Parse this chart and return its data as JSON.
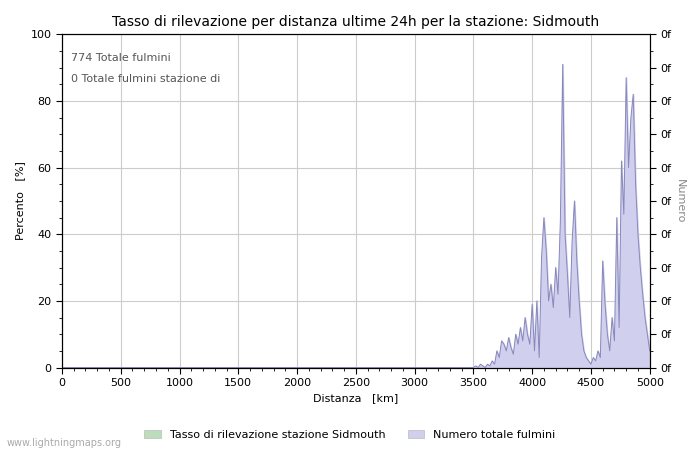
{
  "title": "Tasso di rilevazione per distanza ultime 24h per la stazione: Sidmouth",
  "xlabel": "Distanza   [km]",
  "ylabel_left": "Percento   [%]",
  "ylabel_right": "Numero",
  "annotation_line1": "774 Totale fulmini",
  "annotation_line2": "0 Totale fulmini stazione di",
  "xlim": [
    0,
    5000
  ],
  "ylim_left": [
    0,
    100
  ],
  "xticks": [
    0,
    500,
    1000,
    1500,
    2000,
    2500,
    3000,
    3500,
    4000,
    4500,
    5000
  ],
  "yticks_left": [
    0,
    20,
    40,
    60,
    80,
    100
  ],
  "line_color": "#8888bb",
  "fill_color": "#d0d0ee",
  "legend_label_green": "Tasso di rilevazione stazione Sidmouth",
  "legend_label_blue": "Numero totale fulmini",
  "legend_green": "#bbddbb",
  "legend_blue": "#d0d0ee",
  "watermark": "www.lightningmaps.org",
  "background_color": "#ffffff",
  "grid_color": "#cccccc",
  "title_fontsize": 10,
  "label_fontsize": 8,
  "tick_fontsize": 8,
  "data_x": [
    0,
    50,
    100,
    150,
    200,
    250,
    300,
    350,
    400,
    450,
    500,
    550,
    600,
    650,
    700,
    750,
    800,
    850,
    900,
    950,
    1000,
    1050,
    1100,
    1150,
    1200,
    1250,
    1300,
    1350,
    1400,
    1450,
    1500,
    1550,
    1600,
    1650,
    1700,
    1750,
    1800,
    1850,
    1900,
    1950,
    2000,
    2050,
    2100,
    2150,
    2200,
    2250,
    2300,
    2350,
    2400,
    2450,
    2500,
    2550,
    2600,
    2650,
    2700,
    2750,
    2800,
    2850,
    2900,
    2950,
    3000,
    3050,
    3100,
    3150,
    3200,
    3250,
    3300,
    3350,
    3400,
    3450,
    3500,
    3520,
    3540,
    3560,
    3580,
    3600,
    3620,
    3640,
    3660,
    3680,
    3700,
    3720,
    3740,
    3760,
    3780,
    3800,
    3820,
    3840,
    3860,
    3880,
    3900,
    3920,
    3940,
    3960,
    3980,
    4000,
    4020,
    4040,
    4060,
    4080,
    4100,
    4120,
    4140,
    4160,
    4180,
    4200,
    4220,
    4240,
    4260,
    4280,
    4300,
    4320,
    4340,
    4360,
    4380,
    4400,
    4420,
    4440,
    4460,
    4480,
    4500,
    4520,
    4540,
    4560,
    4580,
    4600,
    4620,
    4640,
    4660,
    4680,
    4700,
    4720,
    4740,
    4760,
    4780,
    4800,
    4820,
    4840,
    4860,
    4880,
    4900,
    4920,
    4940,
    4960,
    4980,
    5000
  ],
  "data_y": [
    0,
    0,
    0,
    0,
    0,
    0,
    0,
    0,
    0,
    0,
    0,
    0,
    0,
    0,
    0,
    0,
    0,
    0,
    0,
    0,
    0,
    0,
    0,
    0,
    0,
    0,
    0,
    0,
    0,
    0,
    0,
    0,
    0,
    0,
    0,
    0,
    0,
    0,
    0,
    0,
    0,
    0,
    0,
    0,
    0,
    0,
    0,
    0,
    0,
    0,
    0,
    0,
    0,
    0,
    0,
    0,
    0,
    0,
    0,
    0,
    0,
    0,
    0,
    0,
    0,
    0,
    0,
    0,
    0,
    0,
    0,
    0.5,
    0,
    1,
    0.5,
    0,
    1,
    0.5,
    2,
    1,
    5,
    3,
    8,
    7,
    5,
    9,
    6,
    4,
    10,
    7,
    12,
    8,
    15,
    10,
    7,
    19,
    5,
    20,
    3,
    33,
    45,
    35,
    20,
    25,
    18,
    30,
    22,
    44,
    91,
    40,
    28,
    15,
    38,
    50,
    32,
    20,
    10,
    5,
    3,
    2,
    1,
    3,
    2,
    5,
    3,
    32,
    19,
    10,
    5,
    15,
    8,
    45,
    12,
    62,
    46,
    87,
    60,
    75,
    82,
    55,
    40,
    30,
    22,
    15,
    10,
    5
  ]
}
